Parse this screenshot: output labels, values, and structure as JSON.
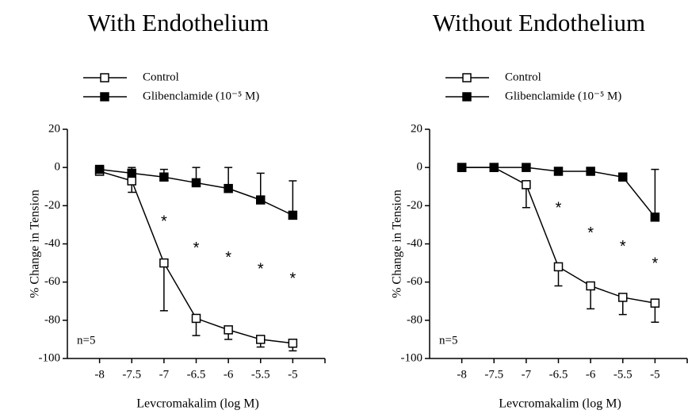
{
  "chart_data": [
    {
      "type": "line",
      "title": "With Endothelium",
      "xlabel": "Levcromakalim (log M)",
      "ylabel": "% Change in Tension",
      "note": "n=5",
      "x": [
        -8,
        -7.5,
        -7,
        -6.5,
        -6,
        -5.5,
        -5
      ],
      "xlim": [
        -8.5,
        -4.5
      ],
      "xticks": [
        -8,
        -7.5,
        -7,
        -6.5,
        -6,
        -5.5,
        -5
      ],
      "ylim": [
        -100,
        20
      ],
      "yticks": [
        -100,
        -80,
        -60,
        -40,
        -20,
        0,
        20
      ],
      "series": [
        {
          "name": "Control",
          "color": "#000000",
          "marker_fill": "#ffffff",
          "error_side": "down",
          "values": [
            -2,
            -7,
            -50,
            -79,
            -85,
            -90,
            -92
          ],
          "errors": [
            0,
            6,
            25,
            9,
            5,
            4,
            4
          ]
        },
        {
          "name": "Glibenclamide (10⁻⁵ M)",
          "color": "#000000",
          "marker_fill": "#000000",
          "error_side": "up",
          "values": [
            -1,
            -3,
            -5,
            -8,
            -11,
            -17,
            -25
          ],
          "errors": [
            0,
            3,
            4,
            8,
            11,
            14,
            18
          ]
        }
      ],
      "annotations": [
        {
          "text": "*",
          "x": -7,
          "y": -27
        },
        {
          "text": "*",
          "x": -6.5,
          "y": -41
        },
        {
          "text": "*",
          "x": -6,
          "y": -46
        },
        {
          "text": "*",
          "x": -5.5,
          "y": -52
        },
        {
          "text": "*",
          "x": -5,
          "y": -57
        }
      ]
    },
    {
      "type": "line",
      "title": "Without Endothelium",
      "xlabel": "Levcromakalim (log M)",
      "ylabel": "% Change in Tension",
      "note": "n=5",
      "x": [
        -8,
        -7.5,
        -7,
        -6.5,
        -6,
        -5.5,
        -5
      ],
      "xlim": [
        -8.5,
        -4.5
      ],
      "xticks": [
        -8,
        -7.5,
        -7,
        -6.5,
        -6,
        -5.5,
        -5
      ],
      "ylim": [
        -100,
        20
      ],
      "yticks": [
        -100,
        -80,
        -60,
        -40,
        -20,
        0,
        20
      ],
      "series": [
        {
          "name": "Control",
          "color": "#000000",
          "marker_fill": "#ffffff",
          "error_side": "down",
          "values": [
            0,
            0,
            -9,
            -52,
            -62,
            -68,
            -71
          ],
          "errors": [
            0,
            0,
            12,
            10,
            12,
            9,
            10
          ]
        },
        {
          "name": "Glibenclamide (10⁻⁵ M)",
          "color": "#000000",
          "marker_fill": "#000000",
          "error_side": "up",
          "values": [
            0,
            0,
            0,
            -2,
            -2,
            -5,
            -26
          ],
          "errors": [
            0,
            0,
            0,
            0,
            0,
            2,
            25
          ]
        }
      ],
      "annotations": [
        {
          "text": "*",
          "x": -6.5,
          "y": -20
        },
        {
          "text": "*",
          "x": -6,
          "y": -33
        },
        {
          "text": "*",
          "x": -5.5,
          "y": -40
        },
        {
          "text": "*",
          "x": -5,
          "y": -49
        }
      ]
    }
  ]
}
